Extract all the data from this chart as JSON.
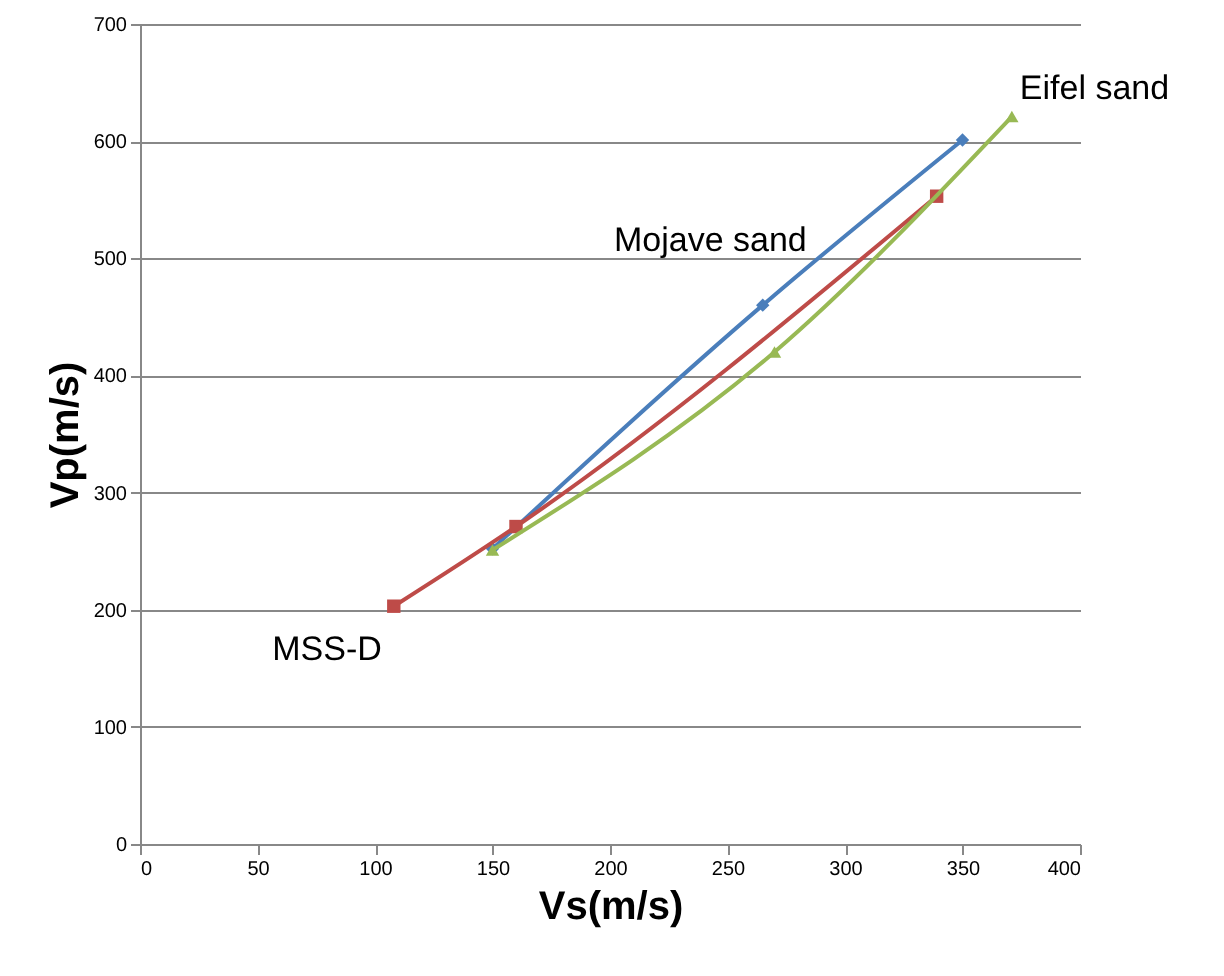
{
  "chart_data": {
    "type": "line",
    "xlabel": "Vs(m/s)",
    "ylabel": "Vp(m/s)",
    "xlim": [
      0,
      400
    ],
    "xticks": [
      0,
      50,
      100,
      150,
      200,
      250,
      300,
      350,
      400
    ],
    "ylim": [
      0,
      700
    ],
    "yticks": [
      0,
      100,
      200,
      300,
      400,
      500,
      600,
      700
    ],
    "grid": "y",
    "series": [
      {
        "name": "Mojave sand",
        "color": "#4a7ebb",
        "marker": "diamond",
        "x": [
          150,
          265,
          350
        ],
        "values": [
          252,
          460,
          601
        ]
      },
      {
        "name": "MSS-D",
        "color": "#be4b48",
        "marker": "square",
        "x": [
          108,
          160,
          339
        ],
        "values": [
          203,
          271,
          553
        ]
      },
      {
        "name": "Eifel sand",
        "color": "#98b954",
        "marker": "triangle",
        "x": [
          150,
          270,
          371
        ],
        "values": [
          251,
          420,
          621
        ]
      }
    ]
  }
}
